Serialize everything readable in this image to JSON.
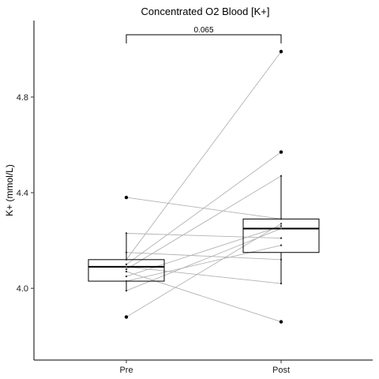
{
  "chart_data": {
    "type": "box",
    "title": "Concentrated O2 Blood [K+]",
    "xlabel": "",
    "ylabel": "K+ (mmol/L)",
    "ylim": [
      3.7,
      5.12
    ],
    "yticks": [
      4.0,
      4.4,
      4.8
    ],
    "ytick_labels": [
      "4.0",
      "4.4",
      "4.8"
    ],
    "categories": [
      "Pre",
      "Post"
    ],
    "boxes": [
      {
        "category": "Pre",
        "q1": 4.03,
        "median": 4.09,
        "q3": 4.12,
        "whisker_low": 3.99,
        "whisker_high": 4.23
      },
      {
        "category": "Post",
        "q1": 4.15,
        "median": 4.25,
        "q3": 4.29,
        "whisker_low": 4.02,
        "whisker_high": 4.47
      }
    ],
    "outliers": [
      {
        "category": "Pre",
        "value": 4.38
      },
      {
        "category": "Pre",
        "value": 3.88
      },
      {
        "category": "Post",
        "value": 4.99
      },
      {
        "category": "Post",
        "value": 4.57
      },
      {
        "category": "Post",
        "value": 3.86
      }
    ],
    "pairs": [
      {
        "pre": 4.38,
        "post": 4.29
      },
      {
        "pre": 4.23,
        "post": 4.21
      },
      {
        "pre": 4.15,
        "post": 4.12
      },
      {
        "pre": 4.12,
        "post": 4.99
      },
      {
        "pre": 4.1,
        "post": 4.57
      },
      {
        "pre": 4.09,
        "post": 4.02
      },
      {
        "pre": 4.08,
        "post": 4.47
      },
      {
        "pre": 4.07,
        "post": 3.86
      },
      {
        "pre": 4.05,
        "post": 4.26
      },
      {
        "pre": 4.03,
        "post": 4.18
      },
      {
        "pre": 3.99,
        "post": 4.25
      },
      {
        "pre": 3.88,
        "post": 4.27
      }
    ],
    "comparison": {
      "from": "Pre",
      "to": "Post",
      "label": "0.065"
    },
    "grid": false,
    "legend": "none"
  }
}
